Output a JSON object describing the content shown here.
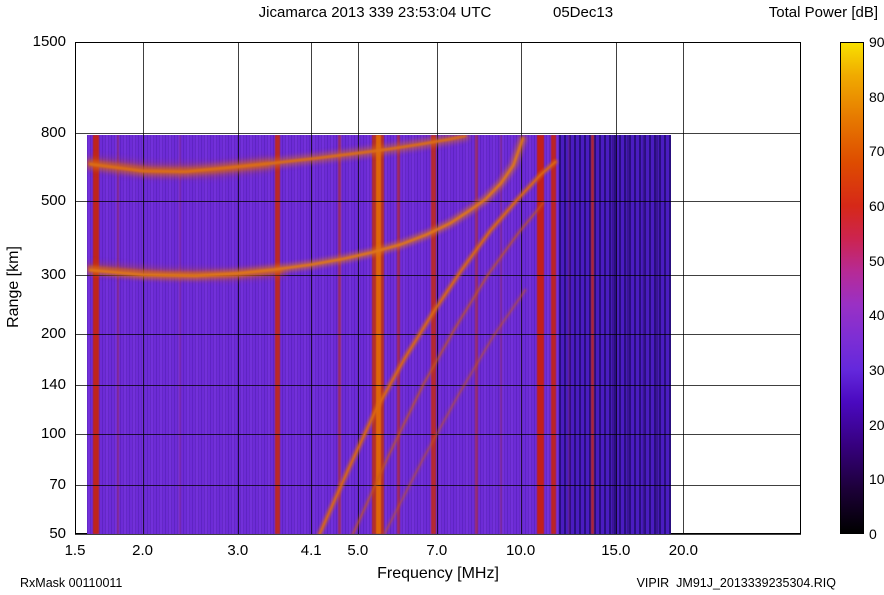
{
  "title": {
    "left": "Jicamarca 2013 339 23:53:04 UTC",
    "right": "05Dec13"
  },
  "colorbar_title": "Total Power [dB]",
  "footer": {
    "left": "RxMask 00110011",
    "right": "VIPIR  JM91J_2013339235304.RIQ"
  },
  "chart_data": {
    "type": "heatmap",
    "title": "Jicamarca 2013 339 23:53:04 UTC  05Dec13",
    "xlabel": "Frequency [MHz]",
    "ylabel": "Range [km]",
    "x_scale": "log",
    "y_scale": "log",
    "xlim": [
      1.5,
      33
    ],
    "ylim": [
      50,
      1500
    ],
    "grid": true,
    "x_ticks": [
      {
        "v": 1.5,
        "label": "1.5"
      },
      {
        "v": 2.0,
        "label": "2.0"
      },
      {
        "v": 3.0,
        "label": "3.0"
      },
      {
        "v": 4.1,
        "label": "4.1"
      },
      {
        "v": 5.0,
        "label": "5.0"
      },
      {
        "v": 7.0,
        "label": "7.0"
      },
      {
        "v": 10.0,
        "label": "10.0"
      },
      {
        "v": 15.0,
        "label": "15.0"
      },
      {
        "v": 20.0,
        "label": "20.0"
      }
    ],
    "y_ticks": [
      {
        "v": 50,
        "label": "50"
      },
      {
        "v": 70,
        "label": "70"
      },
      {
        "v": 100,
        "label": "100"
      },
      {
        "v": 140,
        "label": "140"
      },
      {
        "v": 200,
        "label": "200"
      },
      {
        "v": 300,
        "label": "300"
      },
      {
        "v": 500,
        "label": "500"
      },
      {
        "v": 800,
        "label": "800"
      },
      {
        "v": 1500,
        "label": "1500"
      }
    ],
    "colorbar": {
      "title": "Total Power [dB]",
      "min": 0,
      "max": 90,
      "ticks": [
        0,
        10,
        20,
        30,
        40,
        50,
        60,
        70,
        80,
        90
      ],
      "position": "right",
      "stops": [
        {
          "v": 0,
          "c": "#000000"
        },
        {
          "v": 8,
          "c": "#1c0038"
        },
        {
          "v": 16,
          "c": "#36007e"
        },
        {
          "v": 24,
          "c": "#4a09c0"
        },
        {
          "v": 30,
          "c": "#6428dc"
        },
        {
          "v": 36,
          "c": "#7e2ed4"
        },
        {
          "v": 42,
          "c": "#9a30c4"
        },
        {
          "v": 48,
          "c": "#b62a96"
        },
        {
          "v": 54,
          "c": "#cc2450"
        },
        {
          "v": 60,
          "c": "#d62818"
        },
        {
          "v": 68,
          "c": "#de4c00"
        },
        {
          "v": 76,
          "c": "#e67800"
        },
        {
          "v": 84,
          "c": "#f0aa00"
        },
        {
          "v": 90,
          "c": "#f8e000"
        }
      ]
    },
    "data_extent": {
      "f_min": 1.58,
      "f_max": 19.0,
      "r_min": 50,
      "r_max": 787
    },
    "background_power_db": 30,
    "base_color": "#6d2bd6",
    "dark_region": {
      "f_min": 11.8,
      "f_max": 19.0,
      "color": "#4a1cc0"
    },
    "rfi_stripes": [
      {
        "f": 1.64,
        "w": 6,
        "color": "#c42413",
        "opacity": 0.95
      },
      {
        "f": 1.8,
        "w": 2,
        "color": "#a82a40",
        "opacity": 0.45
      },
      {
        "f": 2.35,
        "w": 2,
        "color": "#9a2a70",
        "opacity": 0.35
      },
      {
        "f": 3.55,
        "w": 5,
        "color": "#c22915",
        "opacity": 0.9
      },
      {
        "f": 4.62,
        "w": 3,
        "color": "#bf3018",
        "opacity": 0.55
      },
      {
        "f": 5.45,
        "w": 12,
        "color": "#c03010",
        "opacity": 0.85
      },
      {
        "f": 5.45,
        "w": 5,
        "color": "#e06a08",
        "opacity": 0.95
      },
      {
        "f": 5.95,
        "w": 3,
        "color": "#c22915",
        "opacity": 0.6
      },
      {
        "f": 6.9,
        "w": 5,
        "color": "#c22915",
        "opacity": 0.85
      },
      {
        "f": 8.3,
        "w": 3,
        "color": "#b52a20",
        "opacity": 0.55
      },
      {
        "f": 9.2,
        "w": 2,
        "color": "#a82a40",
        "opacity": 0.35
      },
      {
        "f": 10.9,
        "w": 7,
        "color": "#c81f10",
        "opacity": 0.95
      },
      {
        "f": 11.5,
        "w": 5,
        "color": "#c42413",
        "opacity": 0.9
      },
      {
        "f": 12.3,
        "w": 2,
        "color": "#7a1f7a",
        "opacity": 0.5
      },
      {
        "f": 13.6,
        "w": 3,
        "color": "#c22915",
        "opacity": 0.8
      },
      {
        "f": 14.8,
        "w": 2,
        "color": "#341287",
        "opacity": 0.85
      },
      {
        "f": 15.8,
        "w": 2,
        "color": "#341287",
        "opacity": 0.85
      },
      {
        "f": 16.9,
        "w": 2,
        "color": "#341287",
        "opacity": 0.85
      },
      {
        "f": 17.9,
        "w": 2,
        "color": "#341287",
        "opacity": 0.85
      }
    ],
    "traces": [
      {
        "name": "spread-fuzz-2hop",
        "color": "#cc4f12",
        "width": 12,
        "blur": 3.5,
        "opacity": 0.4,
        "points": [
          [
            1.6,
            650
          ],
          [
            2.1,
            618
          ],
          [
            2.7,
            618
          ],
          [
            3.4,
            645
          ]
        ]
      },
      {
        "name": "f-layer-2hop-echo",
        "color": "#dd7014",
        "width": 6,
        "blur": 2.6,
        "opacity": 0.85,
        "points": [
          [
            1.6,
            645
          ],
          [
            2.0,
            615
          ],
          [
            2.4,
            612
          ],
          [
            2.9,
            630
          ],
          [
            3.5,
            650
          ],
          [
            4.2,
            672
          ],
          [
            5.0,
            696
          ],
          [
            5.8,
            718
          ],
          [
            6.6,
            742
          ],
          [
            7.4,
            766
          ],
          [
            7.9,
            784
          ]
        ]
      },
      {
        "name": "spread-fuzz-1hop",
        "color": "#cc4f12",
        "width": 10,
        "blur": 3,
        "opacity": 0.45,
        "points": [
          [
            1.6,
            315
          ],
          [
            2.2,
            302
          ],
          [
            2.9,
            300
          ],
          [
            3.6,
            308
          ]
        ]
      },
      {
        "name": "f-layer-1hop-echo",
        "color": "#e07818",
        "width": 5,
        "blur": 2.2,
        "opacity": 0.9,
        "points": [
          [
            1.6,
            310
          ],
          [
            2.0,
            300
          ],
          [
            2.5,
            298
          ],
          [
            3.0,
            303
          ],
          [
            3.5,
            311
          ],
          [
            4.1,
            322
          ],
          [
            4.7,
            335
          ],
          [
            5.3,
            350
          ],
          [
            6.0,
            370
          ],
          [
            6.7,
            396
          ],
          [
            7.4,
            428
          ],
          [
            8.0,
            465
          ],
          [
            8.6,
            505
          ],
          [
            9.2,
            565
          ],
          [
            9.7,
            640
          ],
          [
            10.1,
            770
          ]
        ]
      },
      {
        "name": "oblique-trace",
        "color": "#dd6a10",
        "width": 3,
        "blur": 1.2,
        "opacity": 0.9,
        "points": [
          [
            4.25,
            50
          ],
          [
            4.8,
            78
          ],
          [
            5.4,
            118
          ],
          [
            6.1,
            168
          ],
          [
            6.9,
            232
          ],
          [
            7.8,
            312
          ],
          [
            8.8,
            408
          ],
          [
            9.9,
            508
          ],
          [
            10.9,
            600
          ],
          [
            11.6,
            655
          ]
        ]
      },
      {
        "name": "oblique-trace-faint",
        "color": "#c85a18",
        "width": 2,
        "blur": 1.2,
        "opacity": 0.55,
        "points": [
          [
            4.9,
            50
          ],
          [
            5.7,
            86
          ],
          [
            6.6,
            140
          ],
          [
            7.6,
            210
          ],
          [
            8.7,
            300
          ],
          [
            9.9,
            400
          ],
          [
            11.0,
            492
          ]
        ]
      },
      {
        "name": "oblique-trace-faint-2",
        "color": "#c85a18",
        "width": 2,
        "blur": 1.4,
        "opacity": 0.4,
        "points": [
          [
            5.6,
            50
          ],
          [
            6.6,
            84
          ],
          [
            7.7,
            132
          ],
          [
            8.9,
            196
          ],
          [
            10.2,
            270
          ]
        ]
      }
    ]
  }
}
